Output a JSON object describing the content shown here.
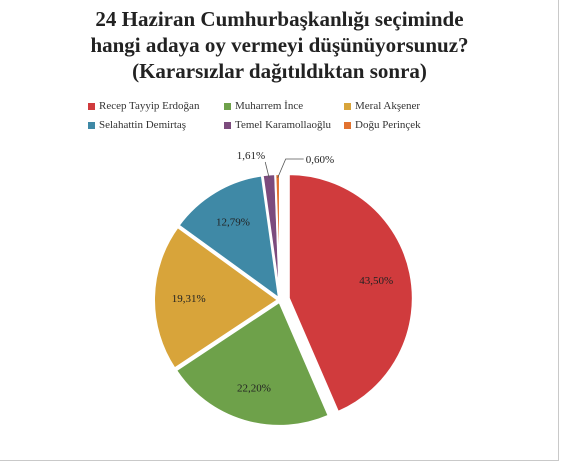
{
  "title_lines": [
    "24 Haziran Cumhurbaşkanlığı seçiminde",
    "hangi adaya oy vermeyi düşünüyorsunuz?",
    "(Kararsızlar dağıtıldıktan sonra)"
  ],
  "chart_data": {
    "type": "pie",
    "title": "24 Haziran Cumhurbaşkanlığı seçiminde hangi adaya oy vermeyi düşünüyorsunuz? (Kararsızlar dağıtıldıktan sonra)",
    "legend_position": "top",
    "slices": [
      {
        "label": "Recep Tayyip Erdoğan",
        "value": 43.5,
        "display": "43,50%",
        "color": "#d03b3d"
      },
      {
        "label": "Muharrem İnce",
        "value": 22.2,
        "display": "22,20%",
        "color": "#6ea14a"
      },
      {
        "label": "Meral Akşener",
        "value": 19.31,
        "display": "19,31%",
        "color": "#d8a43a"
      },
      {
        "label": "Selahattin Demirtaş",
        "value": 12.79,
        "display": "12,79%",
        "color": "#3f89a6"
      },
      {
        "label": "Temel Karamollaoğlu",
        "value": 1.61,
        "display": "1,61%",
        "color": "#7c4b7d"
      },
      {
        "label": "Doğu Perinçek",
        "value": 0.6,
        "display": "0,60%",
        "color": "#e2722f"
      }
    ]
  }
}
